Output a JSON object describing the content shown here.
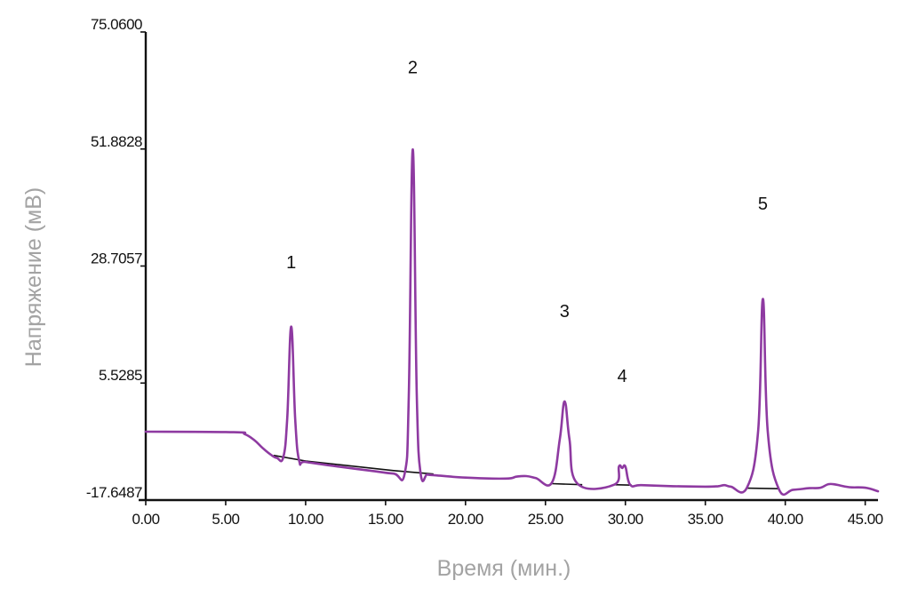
{
  "chart_data": {
    "type": "line",
    "xlabel": "Время (мин.)",
    "ylabel": "Напряжение (мВ)",
    "xlim": [
      0,
      45.8
    ],
    "ylim": [
      -17.6487,
      75.06
    ],
    "x_ticks": [
      0,
      5,
      10,
      15,
      20,
      25,
      30,
      35,
      40,
      45
    ],
    "x_tick_labels": [
      "0.00",
      "5.00",
      "10.00",
      "15.00",
      "20.00",
      "25.00",
      "30.00",
      "35.00",
      "40.00",
      "45.00"
    ],
    "y_ticks": [
      75.06,
      51.8828,
      28.7057,
      5.5285,
      -17.6487
    ],
    "y_tick_labels": [
      "75.0600",
      "51.8828",
      "28.7057",
      "5.5285",
      "-17.6487"
    ],
    "grid": false,
    "colors": {
      "signal": "#8e3aa1",
      "baseline": "#111111",
      "axis": "#111111"
    },
    "peaks": [
      {
        "label": "1",
        "time": 9.1,
        "height": 25.8
      },
      {
        "label": "2",
        "time": 16.7,
        "height": 64.4
      },
      {
        "label": "3",
        "time": 26.2,
        "height": 16.1
      },
      {
        "label": "4",
        "time": 29.8,
        "height": 3.3
      },
      {
        "label": "5",
        "time": 38.6,
        "height": 37.4
      }
    ],
    "series": [
      {
        "x": [
          0,
          5.5,
          6.2,
          6.8,
          7.3,
          7.8,
          8.2,
          8.6,
          8.85,
          9.1,
          9.35,
          9.6,
          10,
          12,
          14,
          15.5,
          16.2,
          16.45,
          16.7,
          16.95,
          17.2,
          17.6,
          18,
          20,
          22.5,
          23.2,
          23.8,
          24.4,
          25.4,
          25.9,
          26.2,
          26.5,
          27,
          29.3,
          29.6,
          29.8,
          30,
          30.3,
          31,
          33,
          35,
          35.8,
          36.2,
          36.6,
          37.6,
          38.3,
          38.6,
          38.9,
          39.6,
          40.5,
          41.5,
          42.2,
          42.7,
          43.2,
          44,
          45,
          45.8
        ],
        "y": [
          -4.1,
          -4.2,
          -4.6,
          -5.8,
          -7.3,
          -8.6,
          -9.3,
          -9.2,
          -1.5,
          16.7,
          -1.7,
          -9.9,
          -10.1,
          -11.0,
          -11.8,
          -12.4,
          -12.3,
          3.0,
          51.8,
          3.0,
          -12.5,
          -12.6,
          -12.7,
          -13.2,
          -13.4,
          -13.0,
          -12.9,
          -13.3,
          -14.2,
          -5.5,
          1.9,
          -5.6,
          -14.4,
          -14.6,
          -11.0,
          -11.3,
          -11.0,
          -14.6,
          -14.7,
          -14.9,
          -15.0,
          -14.9,
          -14.7,
          -15.0,
          -15.2,
          -4.0,
          22.2,
          -4.0,
          -15.5,
          -15.6,
          -15.3,
          -15.2,
          -14.5,
          -14.6,
          -15.1,
          -15.2,
          -15.9
        ]
      }
    ],
    "baseline_segments": [
      {
        "x": [
          8.0,
          10.0,
          15.5,
          18.0
        ],
        "y": [
          -8.8,
          -9.9,
          -11.8,
          -12.5
        ]
      },
      {
        "x": [
          25.4,
          27.3
        ],
        "y": [
          -14.4,
          -14.6
        ]
      },
      {
        "x": [
          29.3,
          30.4
        ],
        "y": [
          -14.6,
          -14.7
        ]
      },
      {
        "x": [
          37.6,
          39.6
        ],
        "y": [
          -15.3,
          -15.4
        ]
      }
    ]
  }
}
